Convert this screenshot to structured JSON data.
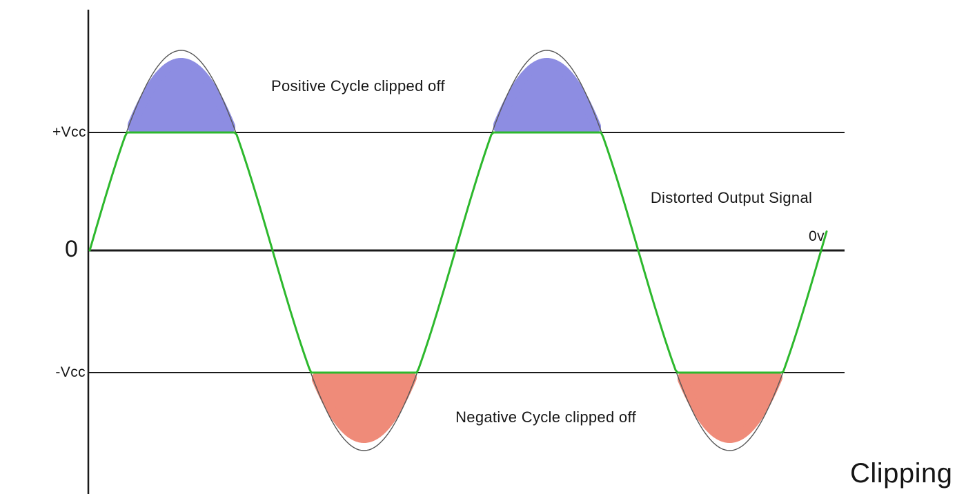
{
  "title": "Clipping",
  "labels": {
    "plus_vcc": "+Vcc",
    "zero": "0",
    "minus_vcc": "-Vcc",
    "zero_volts": "0v",
    "positive_clip": "Positive Cycle clipped off",
    "distorted_output": "Distorted Output Signal",
    "negative_clip": "Negative Cycle clipped off"
  },
  "colors": {
    "clipped_signal_green": "#2db82d",
    "positive_clip_fill": "#8d8de2",
    "negative_clip_fill": "#ef8b79",
    "original_signal_outline": "#575757",
    "axis_black": "#1a1a1a",
    "background": "#ffffff"
  },
  "waveform": {
    "type": "clipped-sine",
    "cycles_shown": 2,
    "clipping_levels": [
      "+Vcc",
      "-Vcc"
    ],
    "description": "Sine wave output clipped flat at +Vcc and -Vcc; shaded regions show clipped-off cycle peaks"
  }
}
